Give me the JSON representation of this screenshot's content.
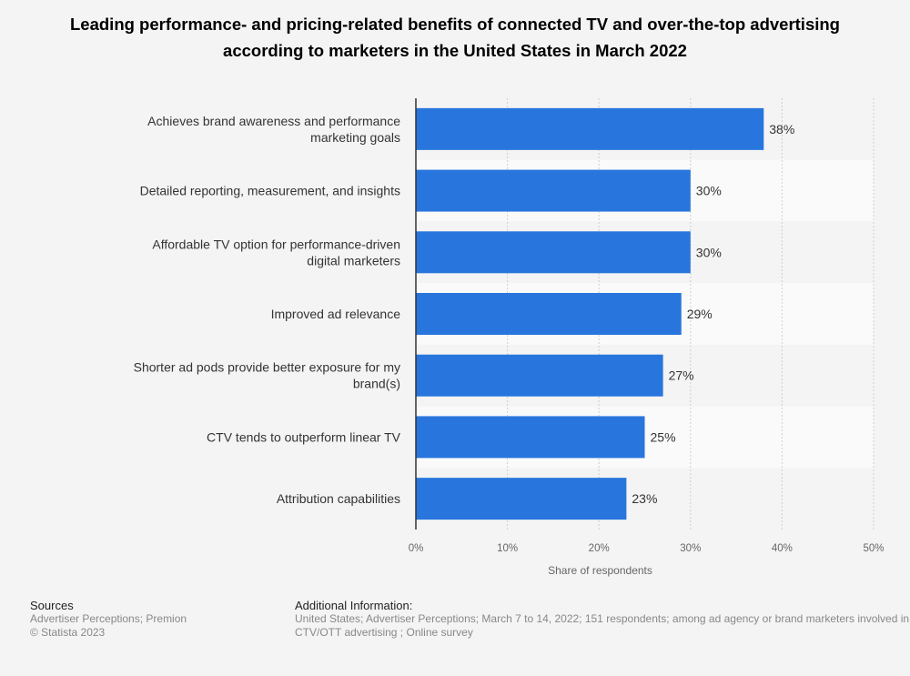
{
  "chart_data": {
    "type": "bar",
    "orientation": "horizontal",
    "title": "Leading performance- and pricing-related benefits of connected TV and over-the-top advertising according to marketers in the United States in March 2022",
    "categories": [
      "Achieves brand awareness and performance marketing goals",
      "Detailed reporting, measurement, and insights",
      "Affordable TV option for performance-driven digital marketers",
      "Improved ad relevance",
      "Shorter ad pods provide better exposure for my brand(s)",
      "CTV tends to outperform linear TV",
      "Attribution capabilities"
    ],
    "values": [
      38,
      30,
      30,
      29,
      27,
      25,
      23
    ],
    "data_labels": [
      "38%",
      "30%",
      "30%",
      "29%",
      "27%",
      "25%",
      "23%"
    ],
    "xlabel": "Share of respondents",
    "ylabel": "",
    "xlim": [
      0,
      50
    ],
    "ticks": [
      "0%",
      "10%",
      "20%",
      "30%",
      "40%",
      "50%"
    ],
    "grid": true,
    "bar_color": "#2876dd"
  },
  "footer": {
    "sources_heading": "Sources",
    "sources": "Advertiser Perceptions; Premion",
    "copyright": "© Statista 2023",
    "additional_heading": "Additional Information:",
    "additional_line1": "United States; Advertiser Perceptions; March 7 to 14, 2022; 151 respondents; among ad agency or brand marketers involved in",
    "additional_line2": "CTV/OTT advertising ; Online survey"
  }
}
